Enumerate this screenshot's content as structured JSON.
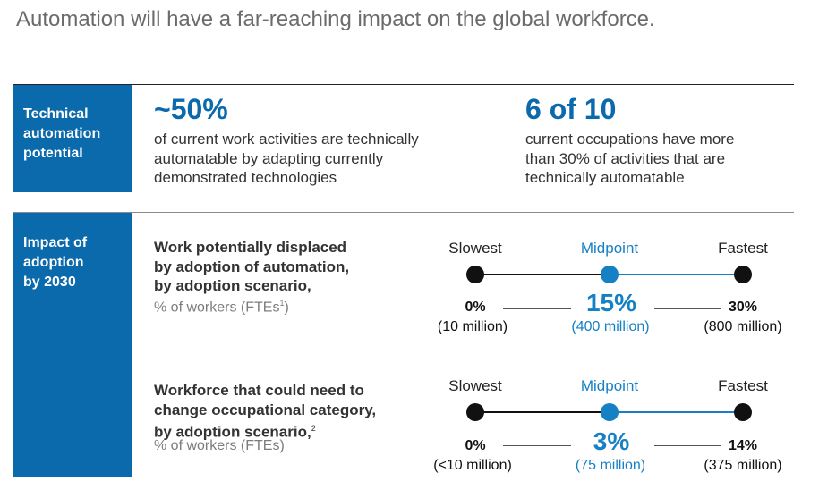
{
  "title": "Automation will have a far-reaching impact on the global workforce.",
  "section1": {
    "label": "Technical\nautomation\npotential",
    "stat1": {
      "value": "~50%",
      "text": "of current work activities are technically\nautomatable by adapting currently\ndemonstrated technologies"
    },
    "stat2": {
      "value": "6 of 10",
      "text": "current occupations have more\nthan 30% of activities that are\ntechnically automatable"
    }
  },
  "section2": {
    "label": "Impact of\nadoption\nby 2030",
    "scenario_labels": {
      "slowest": "Slowest",
      "midpoint": "Midpoint",
      "fastest": "Fastest"
    },
    "row1": {
      "heading": "Work potentially displaced\nby adoption of automation,\nby adoption scenario,",
      "subtext": "% of workers (FTEs",
      "footnote": "1",
      "subtext_end": ")",
      "slowest_pct": "0%",
      "slowest_count": "(10 million)",
      "midpoint_pct": "15%",
      "midpoint_count": "(400 million)",
      "fastest_pct": "30%",
      "fastest_count": "(800 million)"
    },
    "row2": {
      "heading": "Workforce that could need to\nchange occupational category,\nby adoption scenario,",
      "footnote": "2",
      "subtext": "% of workers (FTEs)",
      "slowest_pct": "0%",
      "slowest_count": "(<10 million)",
      "midpoint_pct": "3%",
      "midpoint_count": "(75 million)",
      "fastest_pct": "14%",
      "fastest_count": "(375 million)"
    }
  },
  "colors": {
    "brand_blue": "#0b6aac",
    "accent_blue": "#1580c4",
    "text": "#222222"
  }
}
